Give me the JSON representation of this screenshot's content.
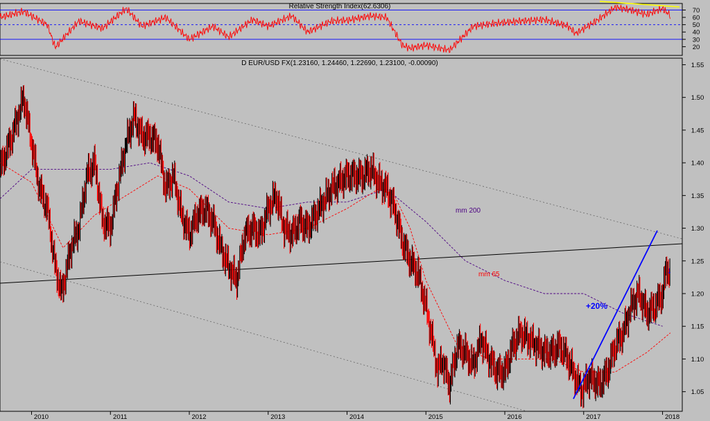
{
  "rsi_panel": {
    "title": "Relative Strength Index(62.6306)",
    "value": 62.6306,
    "levels": [
      70,
      50,
      30
    ],
    "y_ticks": [
      "70",
      "60",
      "50",
      "40",
      "30",
      "20"
    ],
    "ylim": [
      10,
      78
    ]
  },
  "price_panel": {
    "title": "D EUR/USD FX(1.23160, 1.24460, 1.22690, 1.23100, -0.00090)",
    "ohlc": {
      "open": 1.2316,
      "high": 1.2446,
      "low": 1.2269,
      "close": 1.231,
      "change": -0.0009
    },
    "y_ticks": [
      "1.55",
      "1.50",
      "1.45",
      "1.40",
      "1.35",
      "1.30",
      "1.25",
      "1.20",
      "1.15",
      "1.10",
      "1.05"
    ],
    "x_ticks": [
      "2010",
      "2011",
      "2012",
      "2013",
      "2014",
      "2015",
      "2016",
      "2017",
      "2018"
    ],
    "annotations": {
      "mm200": "mm 200",
      "mm65": "mm 65",
      "gain": "+20%",
      "arrow": "↓"
    }
  },
  "colors": {
    "background": "#c0c0c0",
    "up_bar": "#000000",
    "down_bar": "#ff0000",
    "rsi_line": "#ff0000",
    "level_line": "#0000ff",
    "mm200": "#4b0082",
    "mm65": "#ff0000",
    "trendline": "#0000ff",
    "support": "#000000",
    "divergence": "#ffff00"
  },
  "chart_data": [
    {
      "type": "line",
      "title": "Relative Strength Index(62.6306)",
      "x": [
        2009.6,
        2009.9,
        2010.2,
        2010.3,
        2010.6,
        2010.9,
        2011.2,
        2011.4,
        2011.7,
        2012.0,
        2012.3,
        2012.5,
        2012.8,
        2013.0,
        2013.3,
        2013.5,
        2013.8,
        2014.0,
        2014.3,
        2014.5,
        2014.7,
        2014.8,
        2015.0,
        2015.3,
        2015.6,
        2015.9,
        2016.2,
        2016.5,
        2016.8,
        2016.9,
        2017.2,
        2017.4,
        2017.6,
        2017.8,
        2018.0,
        2018.1
      ],
      "y": [
        60,
        68,
        50,
        19,
        55,
        45,
        72,
        48,
        60,
        30,
        48,
        33,
        57,
        48,
        62,
        40,
        55,
        56,
        62,
        60,
        22,
        18,
        22,
        15,
        48,
        52,
        55,
        57,
        48,
        38,
        58,
        74,
        70,
        64,
        72,
        62.6
      ],
      "levels": [
        70,
        50,
        30
      ],
      "ylim": [
        10,
        78
      ]
    },
    {
      "type": "line",
      "title": "D EUR/USD FX(1.23160, 1.24460, 1.22690, 1.23100, -0.00090)",
      "xlim": [
        2009.6,
        2018.25
      ],
      "ylim": [
        1.02,
        1.56
      ],
      "series": [
        {
          "name": "EUR/USD",
          "x": [
            2009.6,
            2009.75,
            2009.9,
            2010.0,
            2010.1,
            2010.2,
            2010.3,
            2010.38,
            2010.5,
            2010.6,
            2010.7,
            2010.8,
            2010.9,
            2011.0,
            2011.1,
            2011.2,
            2011.3,
            2011.4,
            2011.5,
            2011.6,
            2011.7,
            2011.8,
            2011.9,
            2012.0,
            2012.1,
            2012.2,
            2012.3,
            2012.4,
            2012.5,
            2012.6,
            2012.7,
            2012.8,
            2012.9,
            2013.0,
            2013.1,
            2013.2,
            2013.3,
            2013.4,
            2013.5,
            2013.6,
            2013.7,
            2013.8,
            2013.9,
            2014.0,
            2014.1,
            2014.2,
            2014.3,
            2014.4,
            2014.5,
            2014.6,
            2014.7,
            2014.8,
            2014.9,
            2015.0,
            2015.08,
            2015.15,
            2015.2,
            2015.3,
            2015.4,
            2015.5,
            2015.6,
            2015.7,
            2015.8,
            2015.9,
            2016.0,
            2016.1,
            2016.2,
            2016.3,
            2016.4,
            2016.5,
            2016.6,
            2016.7,
            2016.8,
            2016.9,
            2016.98,
            2017.05,
            2017.1,
            2017.2,
            2017.3,
            2017.4,
            2017.5,
            2017.6,
            2017.7,
            2017.8,
            2017.9,
            2018.0,
            2018.05,
            2018.1
          ],
          "y": [
            1.39,
            1.44,
            1.5,
            1.43,
            1.36,
            1.33,
            1.24,
            1.2,
            1.27,
            1.3,
            1.38,
            1.4,
            1.31,
            1.3,
            1.37,
            1.43,
            1.47,
            1.44,
            1.44,
            1.43,
            1.36,
            1.38,
            1.32,
            1.29,
            1.32,
            1.33,
            1.31,
            1.27,
            1.24,
            1.22,
            1.29,
            1.3,
            1.29,
            1.33,
            1.35,
            1.3,
            1.29,
            1.31,
            1.3,
            1.32,
            1.34,
            1.36,
            1.37,
            1.38,
            1.38,
            1.38,
            1.39,
            1.37,
            1.36,
            1.33,
            1.28,
            1.25,
            1.23,
            1.18,
            1.13,
            1.08,
            1.1,
            1.06,
            1.12,
            1.11,
            1.09,
            1.13,
            1.1,
            1.08,
            1.08,
            1.12,
            1.14,
            1.13,
            1.12,
            1.11,
            1.11,
            1.12,
            1.1,
            1.07,
            1.05,
            1.07,
            1.07,
            1.06,
            1.08,
            1.12,
            1.14,
            1.18,
            1.2,
            1.17,
            1.18,
            1.2,
            1.24,
            1.23
          ]
        },
        {
          "name": "mm 200",
          "x": [
            2009.6,
            2010.0,
            2010.5,
            2011.0,
            2011.5,
            2012.0,
            2012.5,
            2013.0,
            2013.5,
            2014.0,
            2014.5,
            2015.0,
            2015.5,
            2016.0,
            2016.5,
            2017.0,
            2017.5,
            2018.0
          ],
          "y": [
            1.345,
            1.39,
            1.39,
            1.39,
            1.4,
            1.38,
            1.34,
            1.33,
            1.34,
            1.34,
            1.36,
            1.31,
            1.25,
            1.22,
            1.2,
            1.2,
            1.17,
            1.15
          ]
        },
        {
          "name": "mm 65",
          "x": [
            2009.6,
            2010.0,
            2010.4,
            2010.8,
            2011.2,
            2011.6,
            2012.0,
            2012.5,
            2013.0,
            2013.5,
            2014.0,
            2014.4,
            2014.6,
            2014.8,
            2015.0,
            2015.4,
            2015.8,
            2016.2,
            2016.6,
            2017.0,
            2017.4,
            2017.8,
            2018.1
          ],
          "y": [
            1.4,
            1.37,
            1.27,
            1.32,
            1.35,
            1.38,
            1.36,
            1.3,
            1.29,
            1.3,
            1.33,
            1.36,
            1.35,
            1.3,
            1.22,
            1.12,
            1.1,
            1.1,
            1.1,
            1.08,
            1.08,
            1.11,
            1.14
          ]
        }
      ],
      "annotations": [
        "mm 200",
        "mm 65",
        "+20%"
      ]
    }
  ]
}
